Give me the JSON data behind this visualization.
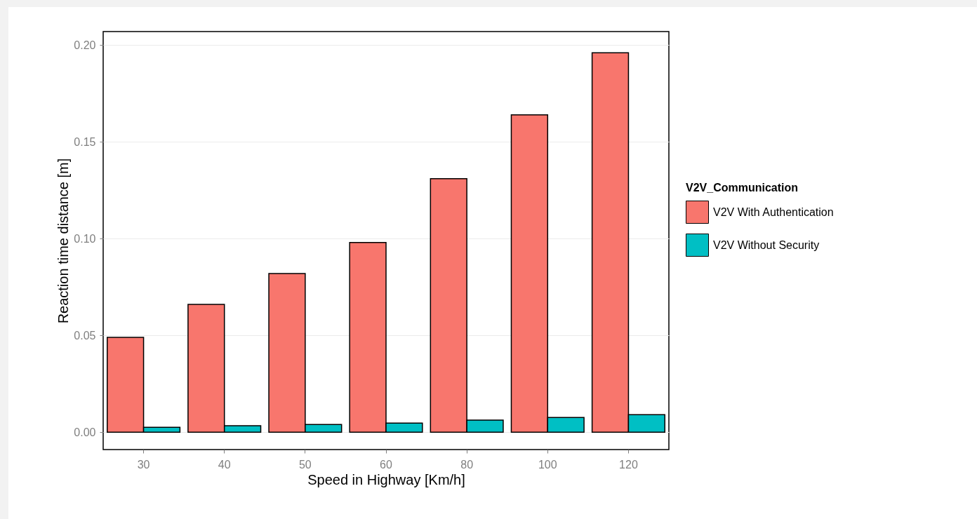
{
  "chart_data": {
    "type": "bar",
    "xlabel": "Speed in Highway [Km/h]",
    "ylabel": "Reaction time distance [m]",
    "legend_title": "V2V_Communication",
    "categories": [
      "30",
      "40",
      "50",
      "60",
      "80",
      "100",
      "120"
    ],
    "series": [
      {
        "name": "V2V With Authentication",
        "color": "#f8766d",
        "values": [
          0.049,
          0.066,
          0.082,
          0.098,
          0.131,
          0.164,
          0.196
        ]
      },
      {
        "name": "V2V Without Security",
        "color": "#00bfc4",
        "values": [
          0.0025,
          0.0033,
          0.004,
          0.0047,
          0.0062,
          0.0076,
          0.009
        ]
      }
    ],
    "ylim": [
      -0.009,
      0.207
    ],
    "yticks": [
      {
        "value": 0,
        "label": "0.00"
      },
      0.05,
      {
        "value": 0.1,
        "label": "0.10"
      },
      0.15,
      {
        "value": 0.2,
        "label": "0.20"
      }
    ],
    "grid": "y",
    "legend": "right"
  }
}
